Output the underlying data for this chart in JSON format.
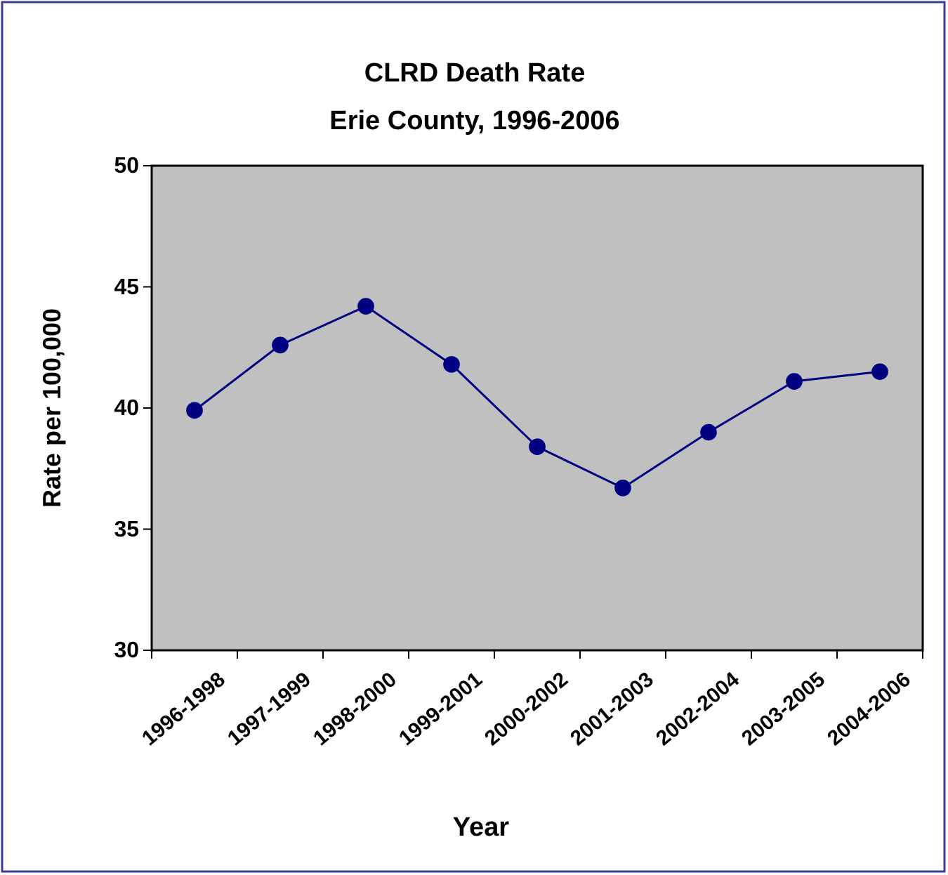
{
  "chart_data": {
    "type": "line",
    "title": "CLRD Death Rate",
    "subtitle": "Erie County, 1996-2006",
    "xlabel": "Year",
    "ylabel": "Rate per 100,000",
    "categories": [
      "1996-1998",
      "1997-1999",
      "1998-2000",
      "1999-2001",
      "2000-2002",
      "2001-2003",
      "2002-2004",
      "2003-2005",
      "2004-2006"
    ],
    "series": [
      {
        "color": "#000080",
        "values": [
          39.9,
          42.6,
          44.2,
          41.8,
          38.4,
          36.7,
          39.0,
          41.1,
          41.5
        ]
      }
    ],
    "ylim": [
      30,
      50
    ],
    "yticks": [
      30,
      35,
      40,
      45,
      50
    ],
    "grid": false,
    "marker": "circle",
    "line_style": "solid"
  }
}
